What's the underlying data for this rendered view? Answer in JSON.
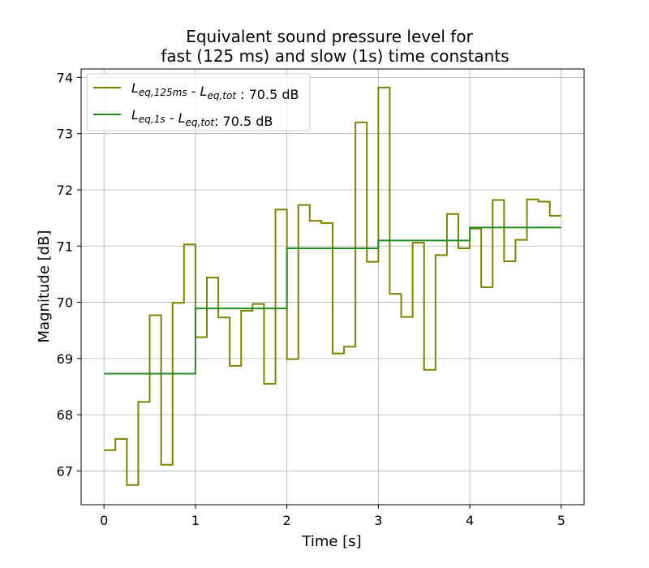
{
  "chart_data": {
    "type": "line",
    "step": "post",
    "title_lines": [
      "Equivalent sound pressure level for",
      "fast (125 ms) and slow (1s) time constants"
    ],
    "xlabel": "Time [s]",
    "ylabel": "Magnitude [dB]",
    "xlim": [
      -0.25,
      5.25
    ],
    "ylim": [
      66.4,
      74.15
    ],
    "xticks": [
      0,
      1,
      2,
      3,
      4,
      5
    ],
    "yticks": [
      67,
      68,
      69,
      70,
      71,
      72,
      73,
      74
    ],
    "grid": true,
    "legend_position": "top-left",
    "series": [
      {
        "name": "L_eq,125ms - L_eq,tot : 70.5 dB",
        "legend_parts": [
          {
            "text": "L",
            "style": "italic"
          },
          {
            "text": "eq,125ms",
            "style": "italic-sub"
          },
          {
            "text": " - ",
            "style": "normal"
          },
          {
            "text": "L",
            "style": "italic"
          },
          {
            "text": "eq,tot",
            "style": "italic-sub"
          },
          {
            "text": " : 70.5 dB",
            "style": "normal"
          }
        ],
        "color": "#808000",
        "x": [
          0,
          0.125,
          0.25,
          0.375,
          0.5,
          0.625,
          0.75,
          0.875,
          1.0,
          1.125,
          1.25,
          1.375,
          1.5,
          1.625,
          1.75,
          1.875,
          2.0,
          2.125,
          2.25,
          2.375,
          2.5,
          2.625,
          2.75,
          2.875,
          3.0,
          3.125,
          3.25,
          3.375,
          3.5,
          3.625,
          3.75,
          3.875,
          4.0,
          4.125,
          4.25,
          4.375,
          4.5,
          4.625,
          4.75,
          4.875,
          5.0
        ],
        "values": [
          67.37,
          67.57,
          66.75,
          68.23,
          69.77,
          67.11,
          69.99,
          71.03,
          69.38,
          70.44,
          69.73,
          68.87,
          69.85,
          69.97,
          68.55,
          71.65,
          68.99,
          71.73,
          71.45,
          71.41,
          69.09,
          69.21,
          73.2,
          70.72,
          73.82,
          70.15,
          69.74,
          71.06,
          68.8,
          70.84,
          71.57,
          70.96,
          71.31,
          70.27,
          71.82,
          70.73,
          71.11,
          71.83,
          71.79,
          71.54,
          71.54
        ]
      },
      {
        "name": "L_eq,1s - L_eq,tot: 70.5 dB",
        "legend_parts": [
          {
            "text": "L",
            "style": "italic"
          },
          {
            "text": "eq,1s",
            "style": "italic-sub"
          },
          {
            "text": " - ",
            "style": "normal"
          },
          {
            "text": "L",
            "style": "italic"
          },
          {
            "text": "eq,tot",
            "style": "italic-sub"
          },
          {
            "text": ": 70.5 dB",
            "style": "normal"
          }
        ],
        "color": "#228b22",
        "x": [
          0,
          1,
          2,
          3,
          4,
          5
        ],
        "values": [
          68.73,
          69.89,
          70.96,
          71.1,
          71.33,
          71.33
        ]
      }
    ]
  }
}
